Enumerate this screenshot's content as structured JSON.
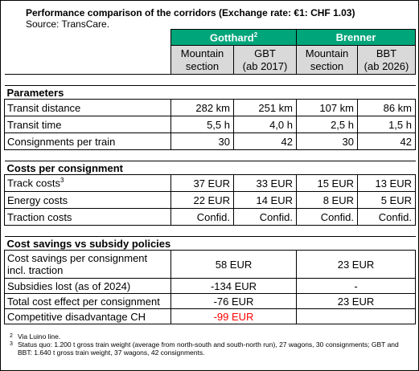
{
  "header": {
    "title": "Performance comparison of the corridors (Exchange rate: €1: CHF 1.03)",
    "source": "Source: TransCare."
  },
  "columns": {
    "groups": [
      {
        "label": "Gotthard",
        "sup": "2"
      },
      {
        "label": "Brenner"
      }
    ],
    "subheads": [
      [
        "Mountain",
        "section"
      ],
      [
        "GBT",
        "(ab 2017)"
      ],
      [
        "Mountain",
        "section"
      ],
      [
        "BBT",
        "(ab 2026)"
      ]
    ]
  },
  "sections": [
    {
      "title": "Parameters",
      "rows": [
        {
          "label": "Transit distance",
          "cells": [
            "282 km",
            "251 km",
            "107 km",
            "86 km"
          ]
        },
        {
          "label": "Transit time",
          "cells": [
            "5,5 h",
            "4,0 h",
            "2,5 h",
            "1,5 h"
          ]
        },
        {
          "label": "Consignments per train",
          "cells": [
            "30",
            "42",
            "30",
            "42"
          ]
        }
      ]
    },
    {
      "title": "Costs per consignment",
      "rows": [
        {
          "label": "Track costs",
          "sup": "3",
          "cells": [
            "37 EUR",
            "33 EUR",
            "15 EUR",
            "13 EUR"
          ]
        },
        {
          "label": "Energy costs",
          "cells": [
            "22 EUR",
            "14 EUR",
            "8 EUR",
            "5 EUR"
          ]
        },
        {
          "label": "Traction costs",
          "cells": [
            "Confid.",
            "Confid.",
            "Confid.",
            "Confid."
          ]
        }
      ]
    },
    {
      "title": "Cost savings vs subsidy policies",
      "merged": true,
      "rows": [
        {
          "label": "Cost savings per consignment incl. traction",
          "cells": [
            "58 EUR",
            "23 EUR"
          ]
        },
        {
          "label": "Subsidies lost (as of 2024)",
          "cells": [
            "-134 EUR",
            "-"
          ]
        },
        {
          "label": "Total cost effect per consignment",
          "cells": [
            "-76 EUR",
            "23 EUR"
          ]
        },
        {
          "label": "Competitive disadvantage CH",
          "cells": [
            "-99 EUR"
          ],
          "color": "#ff0000"
        }
      ]
    }
  ],
  "footnotes": [
    {
      "mark": "2",
      "text": "Via Luino line."
    },
    {
      "mark": "3",
      "text": "Status quo: 1.200 t gross train weight (average from north-south and south-north run), 27 wagons, 30 consignments; GBT and BBT: 1.640 t gross train weight, 37 wagons, 42 consignments."
    }
  ]
}
